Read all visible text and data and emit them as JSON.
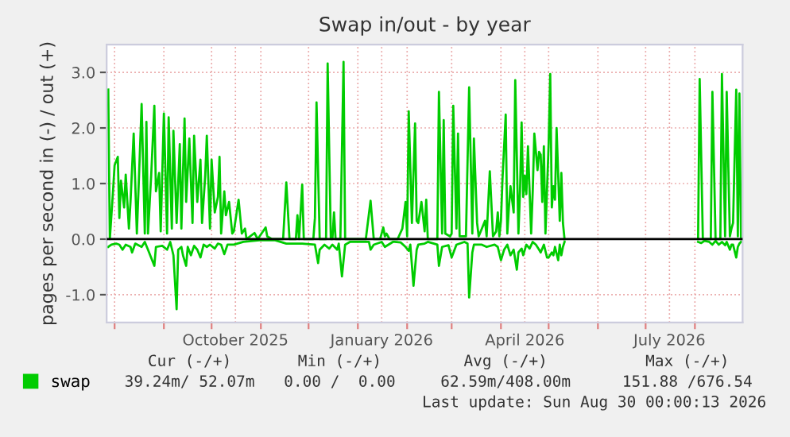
{
  "chart_data": {
    "type": "line",
    "title": "Swap in/out - by year",
    "ylabel": "pages per second in (-) / out (+)",
    "xlim": [
      "2025-07-27",
      "2026-08-31"
    ],
    "ylim": [
      -1.5,
      3.5
    ],
    "xticks": [
      {
        "value": "2025-08-01",
        "label": null
      },
      {
        "value": "2025-09-01",
        "label": null
      },
      {
        "value": "2025-10-01",
        "label": null
      },
      {
        "value": "2025-10-16",
        "label": "October 2025"
      },
      {
        "value": "2025-11-01",
        "label": null
      },
      {
        "value": "2025-12-01",
        "label": null
      },
      {
        "value": "2026-01-01",
        "label": null
      },
      {
        "value": "2026-01-16",
        "label": "January 2026"
      },
      {
        "value": "2026-02-01",
        "label": null
      },
      {
        "value": "2026-03-01",
        "label": null
      },
      {
        "value": "2026-04-01",
        "label": null
      },
      {
        "value": "2026-04-16",
        "label": "April 2026"
      },
      {
        "value": "2026-05-01",
        "label": null
      },
      {
        "value": "2026-06-01",
        "label": null
      },
      {
        "value": "2026-07-01",
        "label": null
      },
      {
        "value": "2026-07-16",
        "label": "July 2026"
      },
      {
        "value": "2026-08-01",
        "label": null
      }
    ],
    "yticks": [
      {
        "value": -1,
        "label": "-1.0"
      },
      {
        "value": 0,
        "label": "0.0"
      },
      {
        "value": 1,
        "label": "1.0"
      },
      {
        "value": 2,
        "label": "2.0"
      },
      {
        "value": 3,
        "label": "3.0"
      }
    ],
    "grid": true,
    "legend": "bottom left",
    "line_style": "solid",
    "marker": "none",
    "ref_lines": [
      {
        "axis": "y",
        "value": 0,
        "color": "#000000"
      }
    ],
    "series": [
      {
        "name": "swap",
        "color": "#00cc00",
        "x": [
          "2025-07-28",
          "2025-07-29",
          "2025-07-31",
          "2025-08-01",
          "2025-08-03",
          "2025-08-04",
          "2025-08-05",
          "2025-08-07",
          "2025-08-08",
          "2025-08-10",
          "2025-08-11",
          "2025-08-13",
          "2025-08-15",
          "2025-08-16",
          "2025-08-18",
          "2025-08-20",
          "2025-08-21",
          "2025-08-22",
          "2025-08-24",
          "2025-08-26",
          "2025-08-27",
          "2025-08-29",
          "2025-08-30",
          "2025-09-01",
          "2025-09-03",
          "2025-09-04",
          "2025-09-06",
          "2025-09-07",
          "2025-09-09",
          "2025-09-11",
          "2025-09-12",
          "2025-09-14",
          "2025-09-15",
          "2025-09-17",
          "2025-09-19",
          "2025-09-20",
          "2025-09-22",
          "2025-09-24",
          "2025-09-25",
          "2025-09-27",
          "2025-09-28",
          "2025-09-30",
          "2025-10-01",
          "2025-10-03",
          "2025-10-05",
          "2025-10-06",
          "2025-10-07",
          "2025-10-09",
          "2025-10-10",
          "2025-10-12",
          "2025-10-14",
          "2025-10-15",
          "2025-10-18",
          "2025-10-20",
          "2025-10-22",
          "2025-10-23",
          "2025-10-28",
          "2025-10-30",
          "2025-11-04",
          "2025-11-05",
          "2025-11-08",
          "2025-11-15",
          "2025-11-17",
          "2025-11-19",
          "2025-11-23",
          "2025-11-24",
          "2025-11-25",
          "2025-11-27",
          "2025-11-28",
          "2025-12-04",
          "2025-12-05",
          "2025-12-06",
          "2025-12-08",
          "2025-12-12",
          "2025-12-13",
          "2025-12-15",
          "2025-12-16",
          "2025-12-17",
          "2025-12-18",
          "2025-12-21",
          "2025-12-23",
          "2025-12-24",
          "2026-01-06",
          "2026-01-09",
          "2026-01-11",
          "2026-01-15",
          "2026-01-17",
          "2026-01-18",
          "2026-01-19",
          "2026-01-21",
          "2026-01-26",
          "2026-01-29",
          "2026-01-31",
          "2026-02-01",
          "2026-02-02",
          "2026-02-04",
          "2026-02-06",
          "2026-02-07",
          "2026-02-08",
          "2026-02-10",
          "2026-02-12",
          "2026-02-13",
          "2026-02-14",
          "2026-02-20",
          "2026-02-21",
          "2026-02-23",
          "2026-02-24",
          "2026-02-25",
          "2026-02-28",
          "2026-03-01",
          "2026-03-02",
          "2026-03-04",
          "2026-03-05",
          "2026-03-06",
          "2026-03-10",
          "2026-03-12",
          "2026-03-14",
          "2026-03-15",
          "2026-03-17",
          "2026-03-18",
          "2026-03-20",
          "2026-03-22",
          "2026-03-23",
          "2026-03-25",
          "2026-03-27",
          "2026-03-29",
          "2026-03-30",
          "2026-03-31",
          "2026-04-01",
          "2026-04-02",
          "2026-04-04",
          "2026-04-05",
          "2026-04-06",
          "2026-04-07",
          "2026-04-09",
          "2026-04-10",
          "2026-04-12",
          "2026-04-13",
          "2026-04-14",
          "2026-04-15",
          "2026-04-16",
          "2026-04-17",
          "2026-04-18",
          "2026-04-20",
          "2026-04-21",
          "2026-04-22",
          "2026-04-24",
          "2026-04-25",
          "2026-04-26",
          "2026-04-27",
          "2026-04-28",
          "2026-04-29",
          "2026-05-01",
          "2026-05-02",
          "2026-05-03",
          "2026-05-04",
          "2026-05-05",
          "2026-05-06",
          "2026-05-08",
          "2026-05-09",
          "2026-05-10",
          "2026-05-11",
          "2026-05-20",
          "2026-08-03",
          "2026-08-04",
          "2026-08-06",
          "2026-08-11",
          "2026-08-12",
          "2026-08-14",
          "2026-08-17",
          "2026-08-18",
          "2026-08-20",
          "2026-08-21",
          "2026-08-23",
          "2026-08-24",
          "2026-08-25",
          "2026-08-27",
          "2026-08-28",
          "2026-08-29",
          "2026-08-30"
        ],
        "values": [
          2.69,
          0,
          0.86,
          1.33,
          1.48,
          0.38,
          1.05,
          0.57,
          1.16,
          0.19,
          0.67,
          1.9,
          0.1,
          0.86,
          2.43,
          0.1,
          2.11,
          0.1,
          1.14,
          2.4,
          0.86,
          1.19,
          0.14,
          2.26,
          0.1,
          2.19,
          0.19,
          1.95,
          0.29,
          1.71,
          0.19,
          2.17,
          0.67,
          1.81,
          0.29,
          1.86,
          0.67,
          1.43,
          0.29,
          1.14,
          1.86,
          0.19,
          1.43,
          0.48,
          0.76,
          1.48,
          0.1,
          0.86,
          0.43,
          0.67,
          0.1,
          0.14,
          0.71,
          0.1,
          0.19,
          0,
          0.11,
          0,
          0.21,
          0.05,
          0,
          0,
          1.02,
          0,
          0,
          0.43,
          0,
          0.98,
          0,
          0,
          0.38,
          2.46,
          0,
          0,
          3.16,
          0,
          0,
          0.48,
          0,
          0,
          3.19,
          0,
          0,
          0.69,
          0,
          0,
          0.21,
          0.05,
          0.1,
          0,
          0,
          0.19,
          0.67,
          0.05,
          2.3,
          0.29,
          2.08,
          0.33,
          0.29,
          0.67,
          0.14,
          0.71,
          0,
          0,
          2.65,
          0.1,
          2.14,
          0.1,
          0.05,
          0.1,
          2.4,
          0.19,
          1.9,
          0.05,
          0.05,
          2.73,
          0.1,
          1.81,
          0.29,
          0.05,
          0.19,
          0.33,
          0.05,
          1.22,
          0.05,
          0.14,
          0.48,
          0.05,
          0.33,
          1.1,
          2.24,
          0.1,
          0.57,
          0.95,
          0.48,
          2.86,
          0.1,
          0.86,
          2.1,
          0.76,
          1.14,
          0.81,
          1.67,
          0.1,
          0.86,
          1.9,
          1.24,
          1.57,
          1.52,
          0.67,
          1.67,
          0.1,
          1.71,
          2.97,
          0.57,
          0.95,
          0.71,
          2.0,
          0.33,
          1.19,
          0.29,
          0,
          null,
          0,
          2.88,
          0,
          0,
          2.65,
          0,
          0,
          2.97,
          0.05,
          2.65,
          0.05,
          0.19,
          0.29,
          2.69,
          0.05,
          2.62,
          0
        ]
      },
      {
        "color": "#00cc00",
        "x": [
          "2025-07-28",
          "2025-07-30",
          "2025-08-02",
          "2025-08-04",
          "2025-08-06",
          "2025-08-08",
          "2025-08-11",
          "2025-08-12",
          "2025-08-14",
          "2025-08-18",
          "2025-08-20",
          "2025-08-22",
          "2025-08-26",
          "2025-08-27",
          "2025-08-31",
          "2025-09-03",
          "2025-09-05",
          "2025-09-07",
          "2025-09-09",
          "2025-09-10",
          "2025-09-12",
          "2025-09-13",
          "2025-09-15",
          "2025-09-16",
          "2025-09-18",
          "2025-09-20",
          "2025-09-22",
          "2025-09-24",
          "2025-09-26",
          "2025-09-28",
          "2025-09-30",
          "2025-10-03",
          "2025-10-05",
          "2025-10-07",
          "2025-10-09",
          "2025-10-11",
          "2025-10-15",
          "2025-10-21",
          "2025-10-31",
          "2025-11-10",
          "2025-11-17",
          "2025-11-27",
          "2025-12-05",
          "2025-12-07",
          "2025-12-08",
          "2025-12-11",
          "2025-12-14",
          "2025-12-16",
          "2025-12-19",
          "2025-12-20",
          "2025-12-22",
          "2025-12-24",
          "2025-12-27",
          "2026-01-08",
          "2026-01-09",
          "2026-01-11",
          "2026-01-16",
          "2026-01-18",
          "2026-01-23",
          "2026-01-24",
          "2026-01-28",
          "2026-01-31",
          "2026-02-02",
          "2026-02-03",
          "2026-02-05",
          "2026-02-07",
          "2026-02-08",
          "2026-02-12",
          "2026-02-14",
          "2026-02-20",
          "2026-02-21",
          "2026-02-23",
          "2026-02-27",
          "2026-03-01",
          "2026-03-04",
          "2026-03-09",
          "2026-03-11",
          "2026-03-12",
          "2026-03-14",
          "2026-03-15",
          "2026-03-20",
          "2026-03-23",
          "2026-03-28",
          "2026-03-30",
          "2026-04-01",
          "2026-04-03",
          "2026-04-05",
          "2026-04-07",
          "2026-04-09",
          "2026-04-11",
          "2026-04-12",
          "2026-04-14",
          "2026-04-15",
          "2026-04-17",
          "2026-04-19",
          "2026-04-21",
          "2026-04-23",
          "2026-04-25",
          "2026-04-26",
          "2026-04-28",
          "2026-04-30",
          "2026-05-01",
          "2026-05-03",
          "2026-05-04",
          "2026-05-05",
          "2026-05-07",
          "2026-05-08",
          "2026-05-09",
          "2026-05-10",
          "2026-05-11",
          "2026-05-20",
          "2026-08-03",
          "2026-08-05",
          "2026-08-07",
          "2026-08-10",
          "2026-08-12",
          "2026-08-14",
          "2026-08-16",
          "2026-08-18",
          "2026-08-20",
          "2026-08-21",
          "2026-08-23",
          "2026-08-24",
          "2026-08-25",
          "2026-08-27",
          "2026-08-28",
          "2026-08-29",
          "2026-08-30"
        ],
        "values": [
          -0.14,
          -0.1,
          -0.08,
          -0.1,
          -0.19,
          -0.1,
          -0.14,
          -0.24,
          -0.08,
          -0.14,
          -0.05,
          -0.19,
          -0.48,
          -0.14,
          -0.12,
          -0.19,
          -0.05,
          -0.29,
          -1.26,
          -0.19,
          -0.14,
          -0.29,
          -0.48,
          -0.14,
          -0.29,
          -0.12,
          -0.19,
          -0.33,
          -0.1,
          -0.14,
          -0.1,
          -0.17,
          -0.08,
          -0.1,
          -0.27,
          -0.1,
          -0.1,
          -0.05,
          -0.02,
          -0.02,
          -0.08,
          -0.08,
          -0.1,
          -0.43,
          -0.19,
          -0.1,
          -0.17,
          -0.1,
          -0.19,
          -0.08,
          -0.67,
          -0.1,
          -0.05,
          -0.05,
          -0.19,
          -0.1,
          -0.05,
          -0.14,
          -0.05,
          -0.05,
          -0.06,
          -0.14,
          -0.21,
          -0.1,
          -0.84,
          -0.19,
          -0.1,
          -0.08,
          -0.05,
          -0.1,
          -0.48,
          -0.14,
          -0.11,
          -0.33,
          -0.1,
          -0.05,
          -0.08,
          -1.05,
          -0.24,
          -0.1,
          -0.1,
          -0.14,
          -0.1,
          -0.14,
          -0.38,
          -0.19,
          -0.1,
          -0.29,
          -0.19,
          -0.55,
          -0.24,
          -0.17,
          -0.29,
          -0.1,
          -0.17,
          -0.05,
          -0.1,
          -0.19,
          -0.24,
          -0.1,
          -0.33,
          -0.33,
          -0.24,
          -0.29,
          -0.14,
          -0.38,
          -0.1,
          -0.29,
          -0.14,
          -0.05,
          null,
          -0.05,
          -0.07,
          -0.03,
          -0.05,
          -0.1,
          -0.03,
          -0.1,
          -0.05,
          -0.11,
          -0.05,
          -0.19,
          -0.1,
          -0.1,
          -0.33,
          -0.14,
          -0.08,
          -0.05
        ]
      }
    ],
    "annotations": [
      "Cur (-/+)",
      "Min (-/+)",
      "Avg (-/+)",
      "Max (-/+)",
      "39.24m/ 52.07m",
      "0.00 /  0.00",
      "62.59m/408.00m",
      "151.88 /676.54",
      "Last update: Sun Aug 30 00:00:13 2026"
    ]
  }
}
